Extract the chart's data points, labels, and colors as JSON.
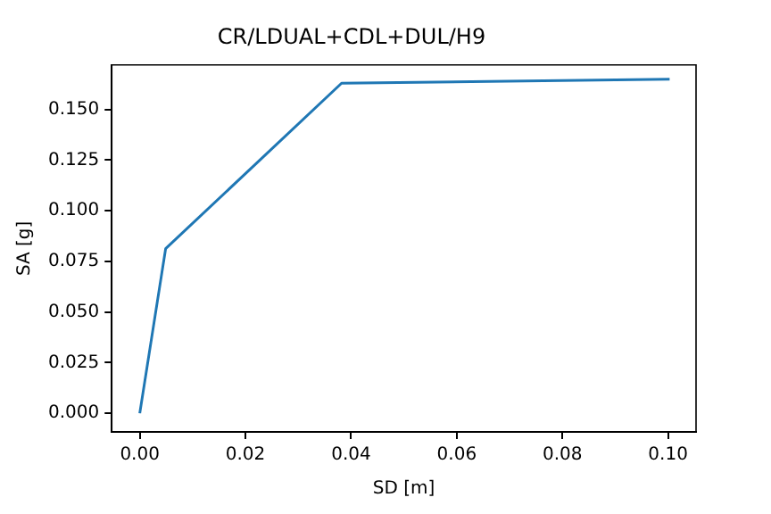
{
  "chart_data": {
    "type": "line",
    "title": "CR/LDUAL+CDL+DUL/H9",
    "xlabel": "SD [m]",
    "ylabel": "SA [g]",
    "x": [
      0,
      0.0049,
      0.0382,
      0.1003
    ],
    "series": [
      {
        "color": "#1f77b4",
        "values": [
          0,
          0.0813,
          0.163,
          0.165
        ]
      }
    ],
    "xlim": [
      -0.0053,
      0.1053
    ],
    "ylim": [
      -0.0092,
      0.172
    ],
    "xticks": [
      {
        "value": 0,
        "label": "0.00"
      },
      {
        "value": 0.02,
        "label": "0.02"
      },
      {
        "value": 0.04,
        "label": "0.04"
      },
      {
        "value": 0.06,
        "label": "0.06"
      },
      {
        "value": 0.08,
        "label": "0.08"
      },
      {
        "value": 0.1,
        "label": "0.10"
      }
    ],
    "yticks": [
      {
        "value": 0,
        "label": "0.000"
      },
      {
        "value": 0.025,
        "label": "0.025"
      },
      {
        "value": 0.05,
        "label": "0.050"
      },
      {
        "value": 0.075,
        "label": "0.075"
      },
      {
        "value": 0.1,
        "label": "0.100"
      },
      {
        "value": 0.125,
        "label": "0.125"
      },
      {
        "value": 0.15,
        "label": "0.150"
      }
    ],
    "grid": false,
    "legend": false,
    "marker": "none",
    "line_style": "solid"
  }
}
